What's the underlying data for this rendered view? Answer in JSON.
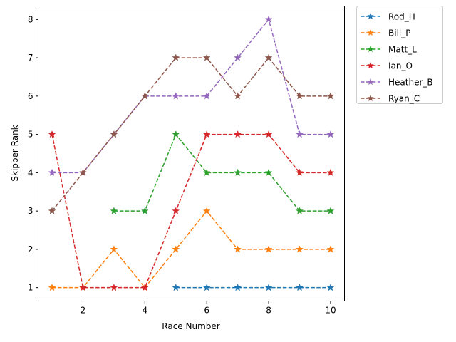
{
  "chart_data": {
    "type": "line",
    "title": "",
    "xlabel": "Race Number",
    "ylabel": "Skipper Rank",
    "xlim": [
      0.55,
      10.45
    ],
    "ylim": [
      0.65,
      8.35
    ],
    "x_ticks": [
      2,
      4,
      6,
      8,
      10
    ],
    "y_ticks": [
      1,
      2,
      3,
      4,
      5,
      6,
      7,
      8
    ],
    "grid": false,
    "legend_position": "outside-top-right",
    "line_style": "dashed",
    "marker": "star",
    "series": [
      {
        "name": "Rod_H",
        "color": "#1f77b4",
        "x": [
          5,
          6,
          7,
          8,
          9,
          10
        ],
        "y": [
          1,
          1,
          1,
          1,
          1,
          1
        ]
      },
      {
        "name": "Bill_P",
        "color": "#ff7f0e",
        "x": [
          1,
          2,
          3,
          4,
          5,
          6,
          7,
          8,
          9,
          10
        ],
        "y": [
          1,
          1,
          2,
          1,
          2,
          3,
          2,
          2,
          2,
          2
        ]
      },
      {
        "name": "Matt_L",
        "color": "#2ca02c",
        "x": [
          3,
          4,
          5,
          6,
          7,
          8,
          9,
          10
        ],
        "y": [
          3,
          3,
          5,
          4,
          4,
          4,
          3,
          3
        ]
      },
      {
        "name": "Ian_O",
        "color": "#d62728",
        "x": [
          1,
          2,
          3,
          4,
          5,
          6,
          7,
          8,
          9,
          10
        ],
        "y": [
          5,
          1,
          1,
          1,
          3,
          5,
          5,
          5,
          4,
          4
        ]
      },
      {
        "name": "Heather_B",
        "color": "#9467bd",
        "x": [
          1,
          2,
          3,
          4,
          5,
          6,
          7,
          8,
          9,
          10
        ],
        "y": [
          4,
          4,
          5,
          6,
          6,
          6,
          7,
          8,
          5,
          5
        ]
      },
      {
        "name": "Ryan_C",
        "color": "#8c564b",
        "x": [
          1,
          2,
          3,
          4,
          5,
          6,
          7,
          8,
          9,
          10
        ],
        "y": [
          3,
          4,
          5,
          6,
          7,
          7,
          6,
          7,
          6,
          6
        ]
      }
    ]
  }
}
